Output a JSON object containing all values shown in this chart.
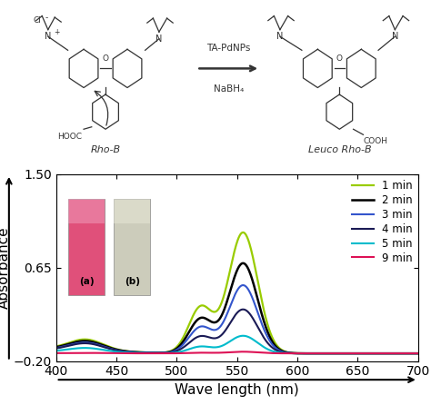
{
  "title": "",
  "xlabel": "Wave length (nm)",
  "ylabel": "Absorbance",
  "xlim": [
    400,
    700
  ],
  "ylim": [
    -0.2,
    1.5
  ],
  "yticks": [
    -0.2,
    0.65,
    1.5
  ],
  "xticks": [
    400,
    450,
    500,
    550,
    600,
    650,
    700
  ],
  "series": [
    {
      "label": "1 min",
      "color": "#99cc00",
      "peak555": 1.1,
      "peak425": 0.09,
      "lw": 1.6
    },
    {
      "label": "2 min",
      "color": "#000000",
      "peak555": 0.82,
      "peak425": 0.08,
      "lw": 1.8
    },
    {
      "label": "3 min",
      "color": "#3355cc",
      "peak555": 0.62,
      "peak425": 0.07,
      "lw": 1.5
    },
    {
      "label": "4 min",
      "color": "#1a1a55",
      "peak555": 0.4,
      "peak425": 0.065,
      "lw": 1.5
    },
    {
      "label": "5 min",
      "color": "#00bbcc",
      "peak555": 0.16,
      "peak425": 0.035,
      "lw": 1.5
    },
    {
      "label": "9 min",
      "color": "#dd1155",
      "peak555": 0.015,
      "peak425": 0.003,
      "lw": 1.5
    }
  ],
  "inset_photo": {
    "tube_a_color": "#e0507a",
    "tube_b_color": "#ccccbb",
    "label_a": "(a)",
    "label_b": "(b)"
  },
  "chem_arrow_text_top": "TA-PdNPs",
  "chem_arrow_text_bot": "NaBH₄",
  "label_rhob": "Rho-B",
  "label_leucorhob": "Leuco Rho-B",
  "background_color": "#ffffff"
}
